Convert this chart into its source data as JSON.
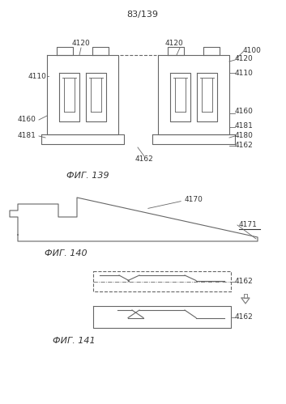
{
  "title": "83/139",
  "fig139_label": "ФИГ. 139",
  "fig140_label": "ФИГ. 140",
  "fig141_label": "ФИГ. 141",
  "bg_color": "#ffffff",
  "line_color": "#666666",
  "lw": 0.8
}
